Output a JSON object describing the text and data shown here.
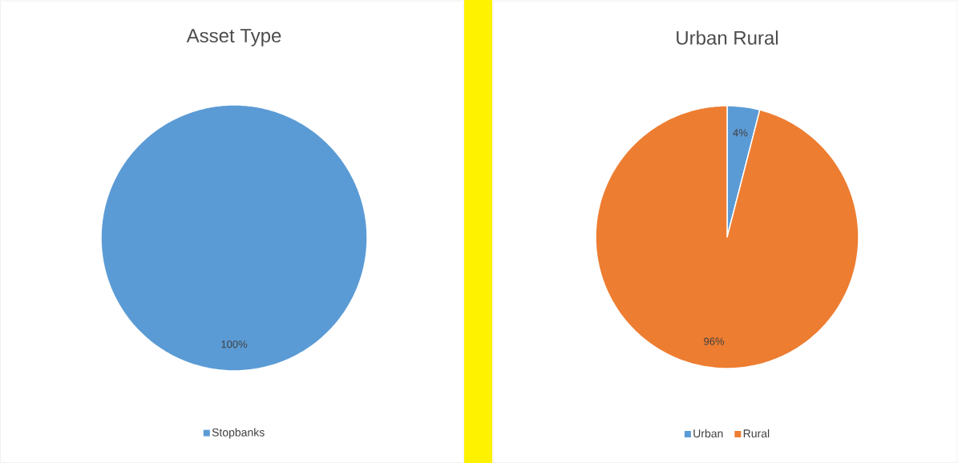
{
  "chart_data": [
    {
      "type": "pie",
      "title": "Asset Type",
      "categories": [
        "Stopbanks"
      ],
      "values": [
        100
      ],
      "colors": [
        "#5b9bd5"
      ],
      "value_labels": [
        "100%"
      ],
      "legend": "bottom"
    },
    {
      "type": "pie",
      "title": "Urban Rural",
      "categories": [
        "Urban",
        "Rural"
      ],
      "values": [
        4,
        96
      ],
      "colors": [
        "#5b9bd5",
        "#ed7d31"
      ],
      "value_labels": [
        "4%",
        "96%"
      ],
      "legend": "bottom"
    }
  ]
}
